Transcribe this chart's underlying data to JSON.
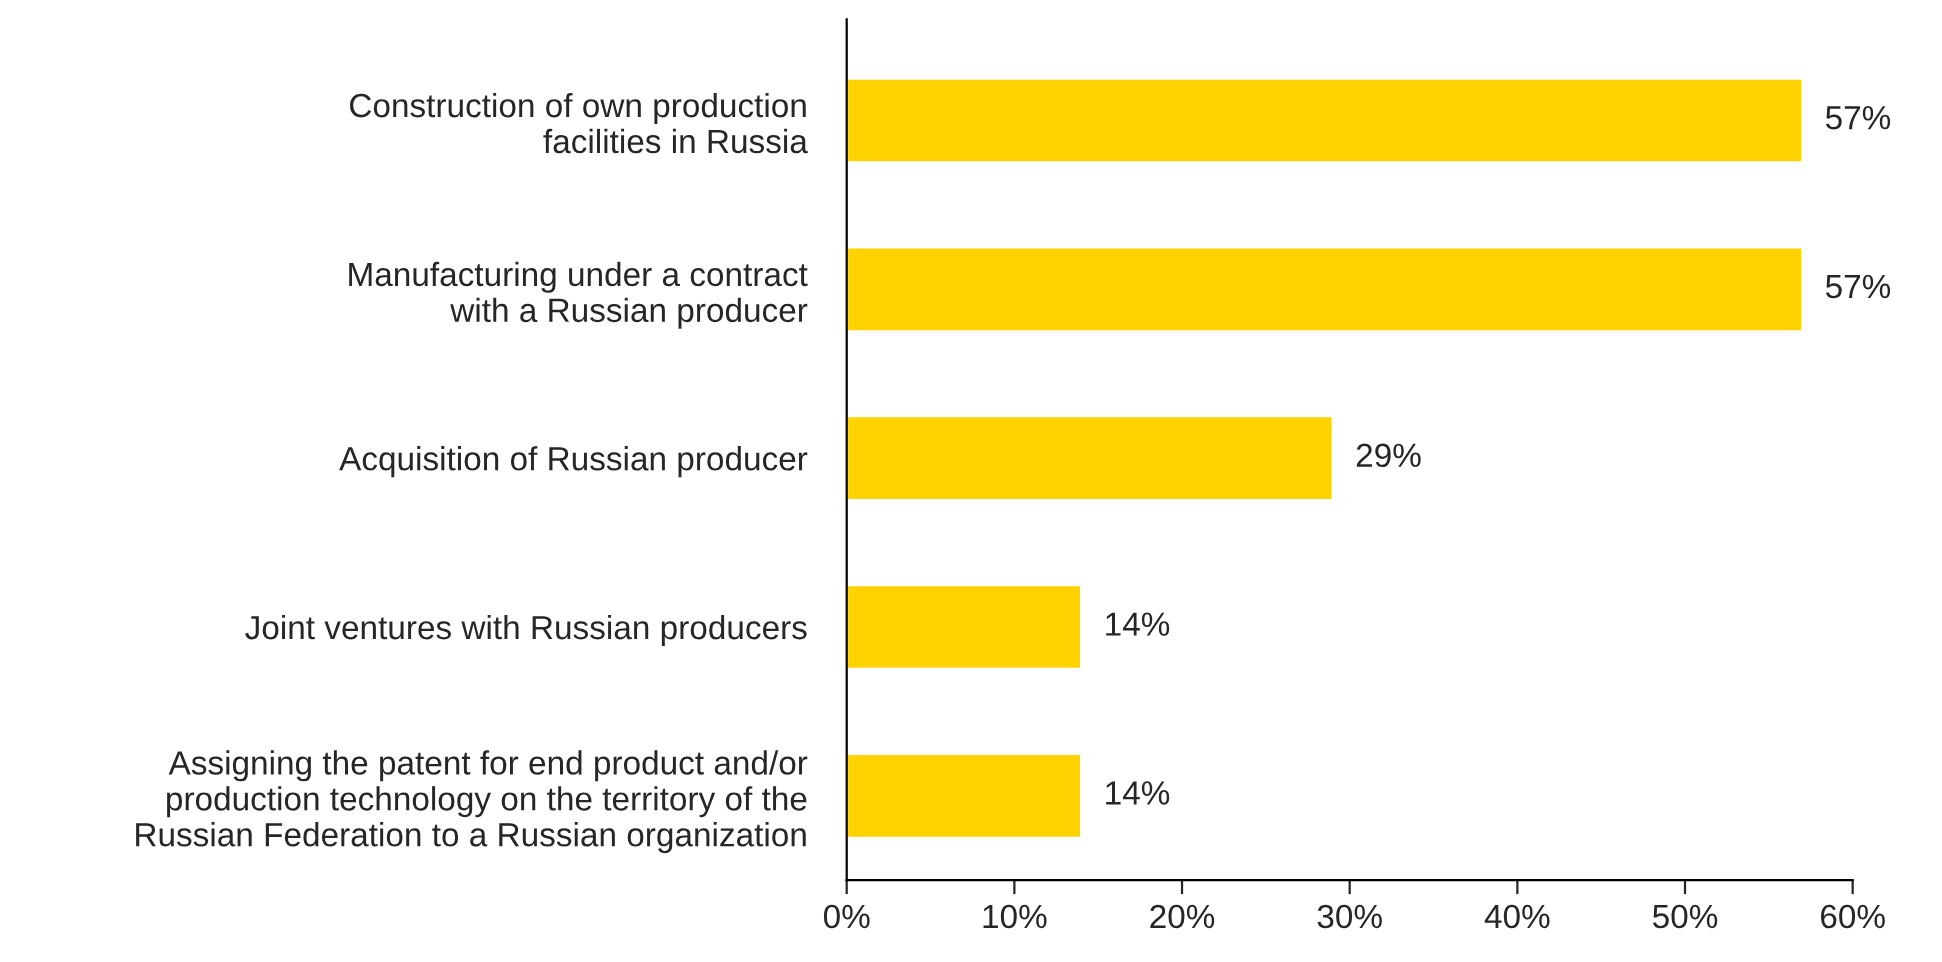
{
  "chart_data": {
    "type": "bar",
    "orientation": "horizontal",
    "categories": [
      "Construction of own production\nfacilities in Russia",
      "Manufacturing under a contract\nwith a Russian producer",
      "Acquisition of Russian producer",
      "Joint ventures with Russian producers",
      "Assigning the patent for end product and/or\nproduction technology on the territory of the\nRussian Federation to a Russian organization"
    ],
    "values": [
      57,
      57,
      29,
      14,
      14
    ],
    "color": "#ffd200",
    "value_labels": [
      "57%",
      "57%",
      "29%",
      "14%",
      "14%"
    ],
    "xlim": [
      0,
      60
    ],
    "xticks": [
      {
        "value": 0,
        "label": "0%"
      },
      {
        "value": 10,
        "label": "10%"
      },
      {
        "value": 20,
        "label": "20%"
      },
      {
        "value": 30,
        "label": "30%"
      },
      {
        "value": 40,
        "label": "40%"
      },
      {
        "value": 50,
        "label": "50%"
      },
      {
        "value": 60,
        "label": "60%"
      }
    ],
    "grid": false,
    "legend": false
  }
}
